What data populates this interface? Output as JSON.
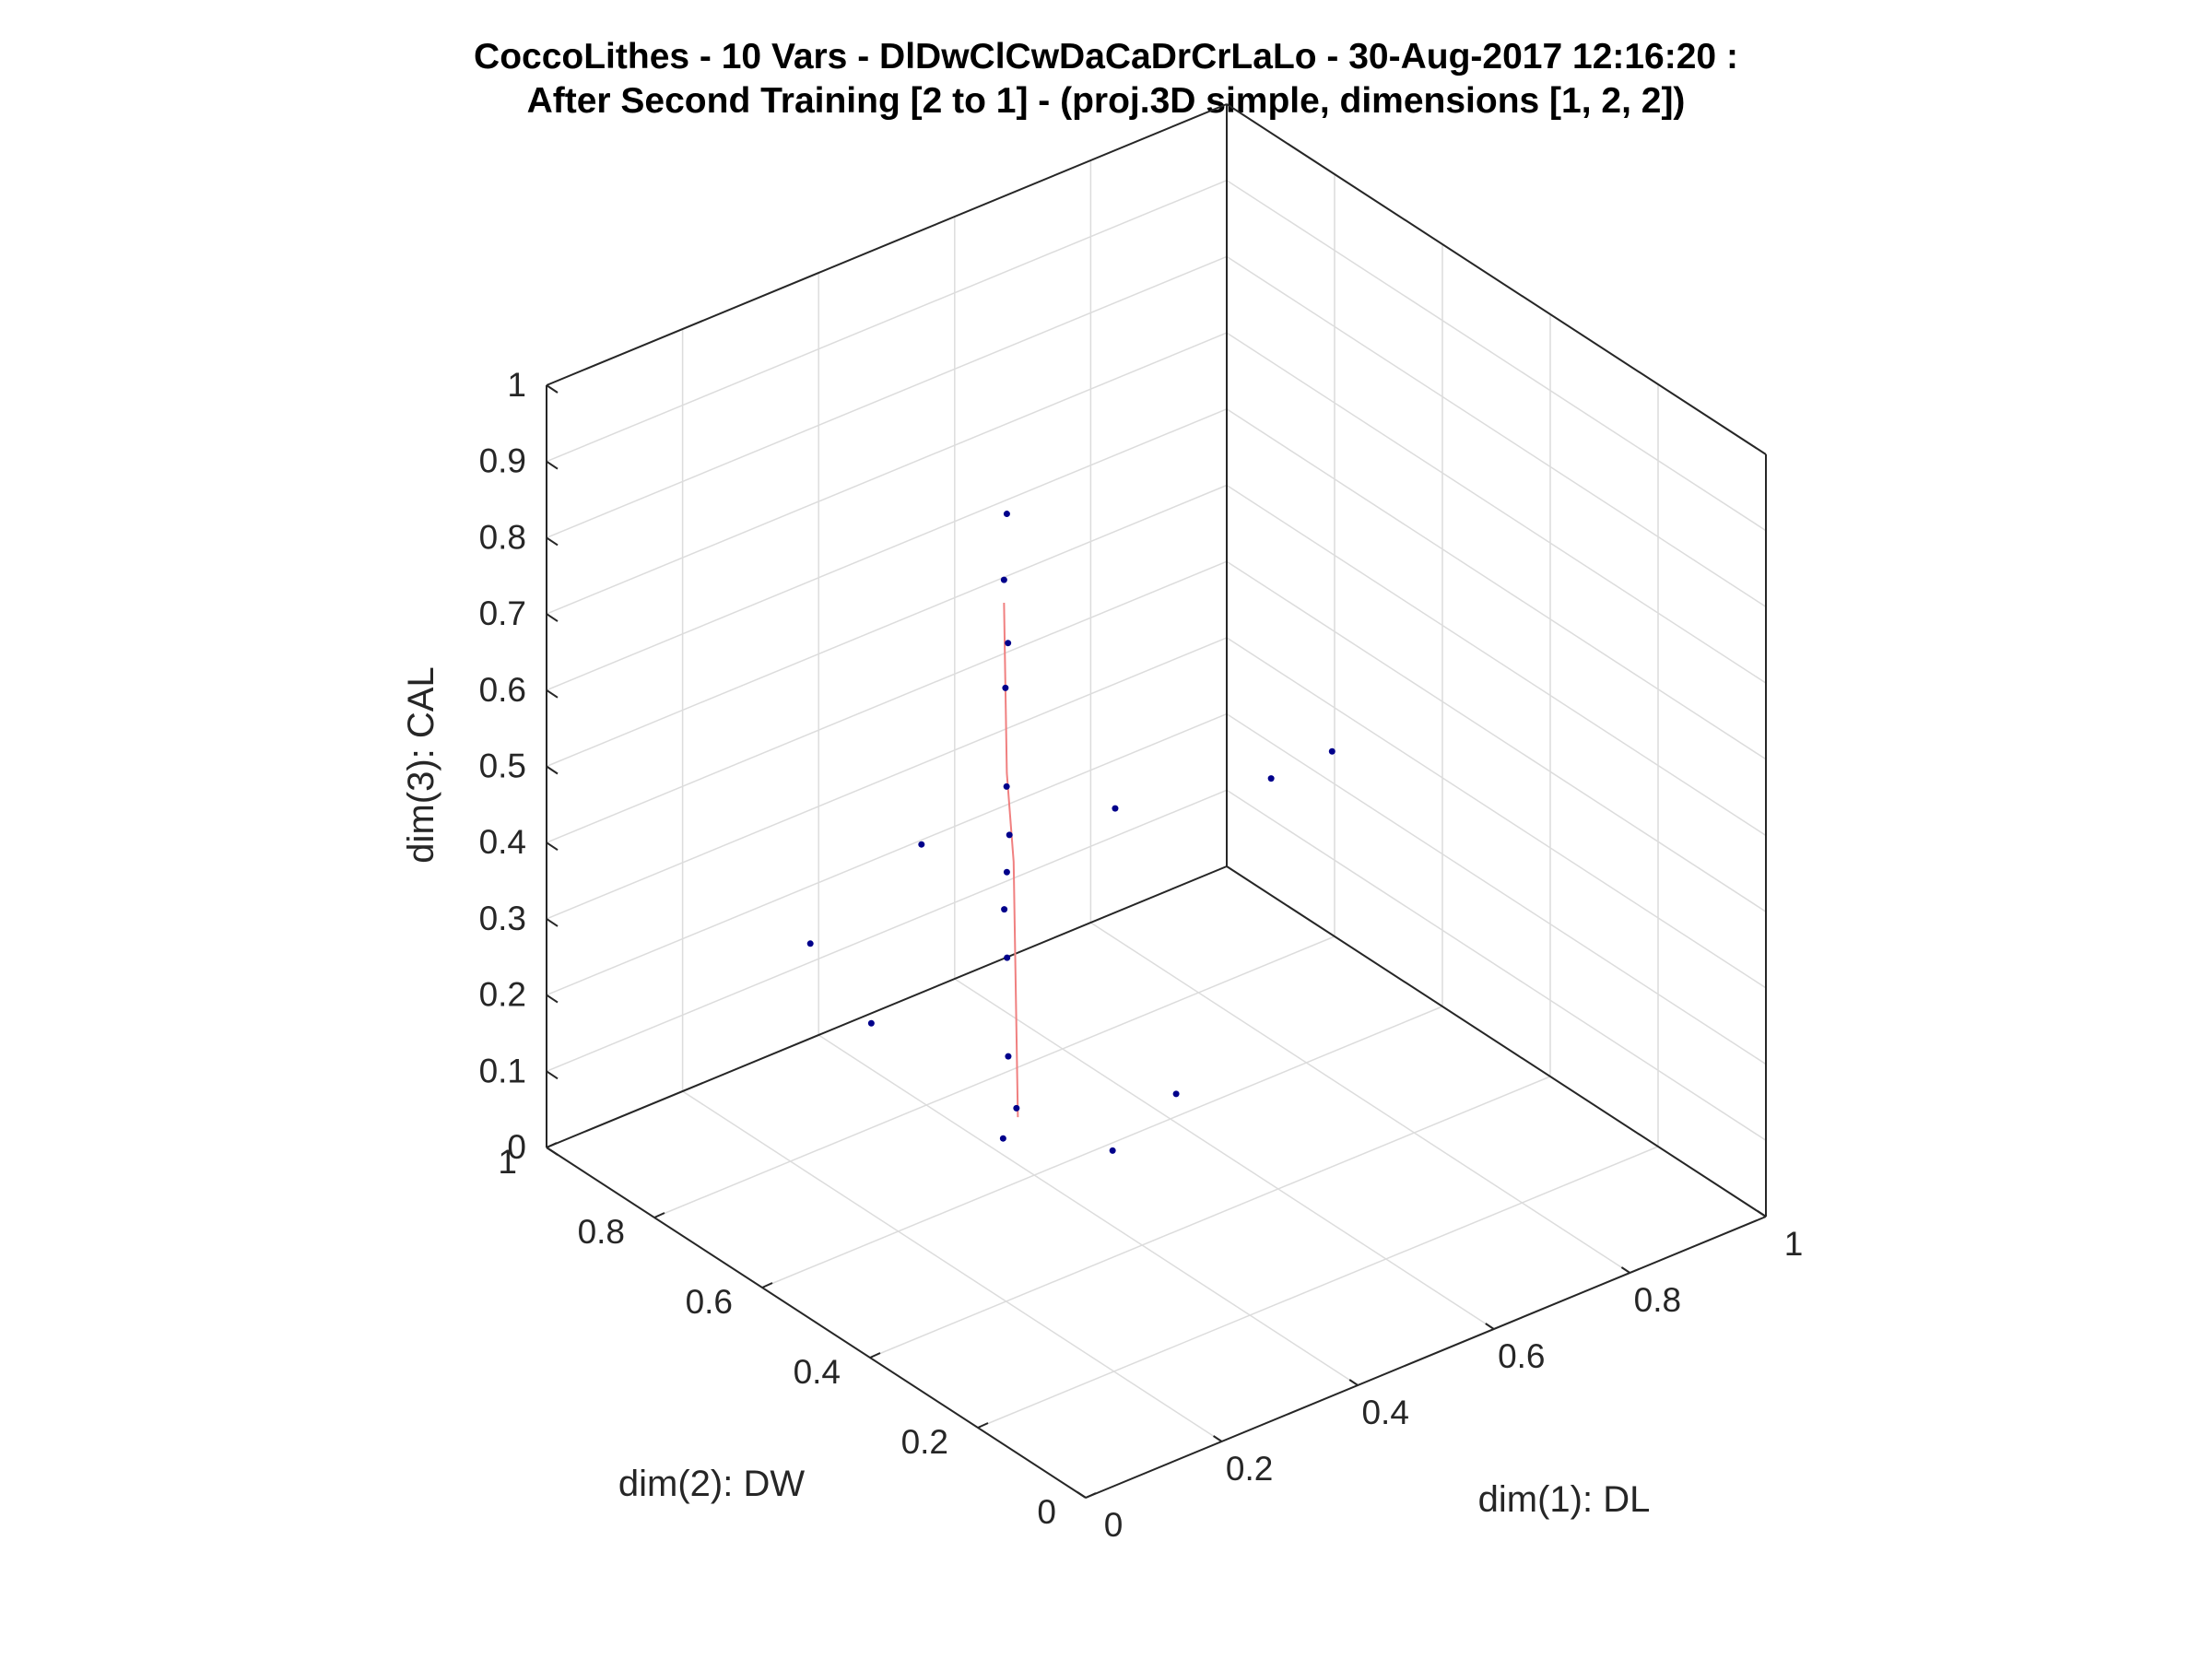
{
  "chart_data": {
    "type": "scatter",
    "title_line1": "CoccoLithes - 10 Vars - DlDwClCwDaCaDrCrLaLo - 30-Aug-2017 12:16:20 :",
    "title_line2": "After Second Training [2 to 1] - (proj.3D simple, dimensions [1, 2, 2])",
    "xlabel": "dim(1): DL",
    "ylabel": "dim(2): DW",
    "zlabel": "dim(3): CAL",
    "xlim": [
      0,
      1
    ],
    "ylim": [
      0,
      1
    ],
    "zlim": [
      0,
      1
    ],
    "x_ticks": [
      "0",
      "0.2",
      "0.4",
      "0.6",
      "0.8",
      "1"
    ],
    "y_ticks": [
      "0",
      "0.2",
      "0.4",
      "0.6",
      "0.8",
      "1"
    ],
    "z_ticks": [
      "0",
      "0.1",
      "0.2",
      "0.3",
      "0.4",
      "0.5",
      "0.6",
      "0.7",
      "0.8",
      "0.9",
      "1"
    ],
    "grid": true,
    "point_color": "#00008b",
    "mesh_color": "#f08080",
    "samples": [
      {
        "x": 0.32,
        "y": 0.55,
        "z": 0.45
      },
      {
        "x": 0.3,
        "y": 0.52,
        "z": 0.52
      },
      {
        "x": 0.34,
        "y": 0.58,
        "z": 0.38
      },
      {
        "x": 0.28,
        "y": 0.5,
        "z": 0.6
      },
      {
        "x": 0.36,
        "y": 0.6,
        "z": 0.3
      },
      {
        "x": 0.31,
        "y": 0.54,
        "z": 0.7
      },
      {
        "x": 0.33,
        "y": 0.56,
        "z": 0.2
      },
      {
        "x": 0.29,
        "y": 0.51,
        "z": 0.78
      },
      {
        "x": 0.35,
        "y": 0.57,
        "z": 0.12
      },
      {
        "x": 0.3,
        "y": 0.53,
        "z": 0.85
      },
      {
        "x": 0.37,
        "y": 0.62,
        "z": 0.05
      },
      {
        "x": 0.32,
        "y": 0.55,
        "z": 0.92
      },
      {
        "x": 0.4,
        "y": 0.45,
        "z": 0.55
      },
      {
        "x": 0.25,
        "y": 0.62,
        "z": 0.48
      },
      {
        "x": 0.55,
        "y": 0.35,
        "z": 0.58
      },
      {
        "x": 0.6,
        "y": 0.3,
        "z": 0.62
      },
      {
        "x": 0.15,
        "y": 0.7,
        "z": 0.35
      },
      {
        "x": 0.2,
        "y": 0.65,
        "z": 0.25
      },
      {
        "x": 0.45,
        "y": 0.4,
        "z": 0.18
      },
      {
        "x": 0.42,
        "y": 0.48,
        "z": 0.08
      }
    ],
    "prototypes": [
      {
        "x": 0.3,
        "y": 0.53,
        "z": 0.82
      },
      {
        "x": 0.31,
        "y": 0.54,
        "z": 0.7
      },
      {
        "x": 0.32,
        "y": 0.55,
        "z": 0.58
      },
      {
        "x": 0.33,
        "y": 0.55,
        "z": 0.46
      },
      {
        "x": 0.34,
        "y": 0.56,
        "z": 0.34
      },
      {
        "x": 0.35,
        "y": 0.57,
        "z": 0.22
      },
      {
        "x": 0.36,
        "y": 0.58,
        "z": 0.1
      }
    ]
  }
}
